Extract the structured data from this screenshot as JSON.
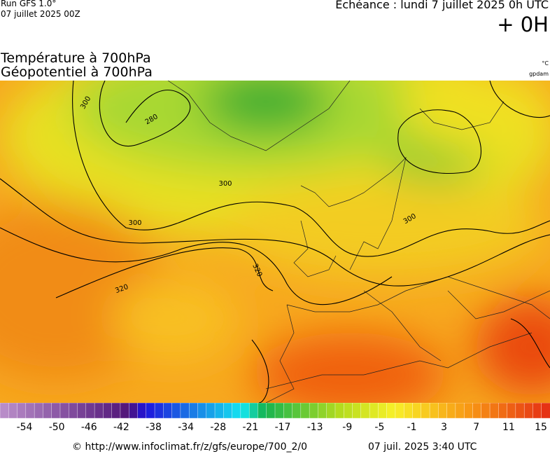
{
  "header": {
    "run": "Run GFS 1.0°",
    "run_date": "07 juillet 2025 00Z",
    "echeance": "Echéance : lundi 7 juillet 2025 0h UTC",
    "offset": "+ 0H"
  },
  "titles": {
    "line1": "Température à 700hPa",
    "line2": "Géopotentiel à 700hPa",
    "unit1": "°C",
    "unit2": "gpdam"
  },
  "map": {
    "contour_labels": [
      "300",
      "280",
      "300",
      "300",
      "320",
      "320",
      "300"
    ]
  },
  "colorbar": {
    "ticks": [
      -54,
      -50,
      -46,
      -42,
      -38,
      -34,
      -28,
      -21,
      -17,
      -13,
      -9,
      -5,
      -1,
      3,
      7,
      11,
      15
    ]
  },
  "footer": {
    "source": "© http://www.infoclimat.fr/z/gfs/europe/700_2/0",
    "timestamp": "07 juil. 2025  3:40 UTC"
  }
}
